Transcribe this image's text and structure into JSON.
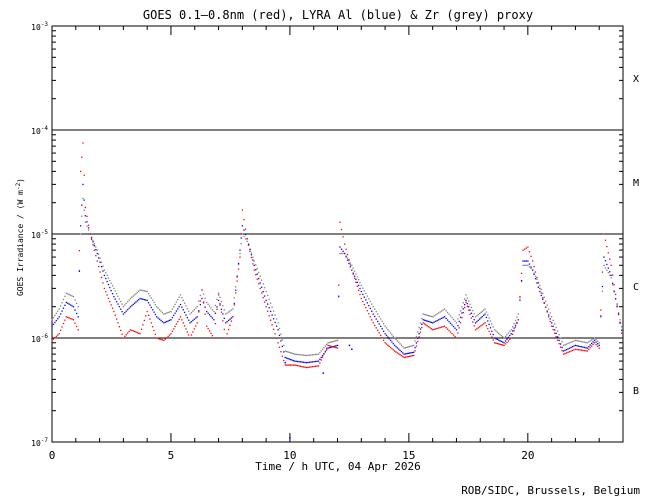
{
  "chart_data": {
    "type": "scatter",
    "title": "GOES 0.1–0.8nm (red), LYRA Al (blue) & Zr (grey) proxy",
    "xlabel": "Time / h UTC, 04 Apr 2026",
    "ylabel_prefix": "GOES Irradiance / (W m",
    "ylabel_exp": "-2",
    "ylabel_suffix": ")",
    "footer": "ROB/SIDC, Brussels, Belgium",
    "xlim": [
      0,
      24
    ],
    "ylim_log10": [
      -7,
      -3
    ],
    "y_scale": "log",
    "x_ticks": [
      0,
      5,
      10,
      15,
      20
    ],
    "x_tick_labels": [
      "0",
      "5",
      "10",
      "15",
      "20"
    ],
    "y_ticks_log10": [
      -7,
      -6,
      -5,
      -4,
      -3
    ],
    "y_tick_labels": [
      {
        "base": "10",
        "exp": "-7"
      },
      {
        "base": "10",
        "exp": "-6"
      },
      {
        "base": "10",
        "exp": "-5"
      },
      {
        "base": "10",
        "exp": "-4"
      },
      {
        "base": "10",
        "exp": "-3"
      }
    ],
    "flare_class_lines": [
      -6,
      -5,
      -4
    ],
    "flare_classes": [
      {
        "label": "X",
        "log10": -3.5
      },
      {
        "label": "M",
        "log10": -4.5
      },
      {
        "label": "C",
        "log10": -5.5
      },
      {
        "label": "B",
        "log10": -6.5
      }
    ],
    "series": [
      {
        "name": "GOES",
        "color": "#ff0000",
        "x": [
          0,
          0.3,
          0.6,
          0.9,
          1.1,
          1.2,
          1.3,
          1.4,
          1.6,
          1.9,
          2.2,
          2.6,
          3.0,
          3.3,
          3.7,
          4.0,
          4.4,
          4.7,
          5.0,
          5.4,
          5.8,
          6.1,
          6.3,
          6.5,
          6.8,
          7.0,
          7.3,
          7.6,
          7.9,
          8.0,
          8.2,
          8.5,
          9.0,
          9.5,
          9.8,
          10.2,
          10.7,
          11.2,
          11.6,
          12.0,
          12.1,
          12.3,
          12.6,
          13.0,
          13.5,
          14.0,
          14.4,
          14.8,
          15.2,
          15.6,
          16.0,
          16.5,
          17.0,
          17.4,
          17.8,
          18.2,
          18.6,
          19.0,
          19.3,
          19.6,
          19.8,
          20.0,
          20.2,
          20.5,
          21.0,
          21.5,
          22.0,
          22.5,
          22.8,
          23.0,
          23.2,
          23.5,
          24.0
        ],
        "y": [
          9.5e-07,
          1.1e-06,
          1.6e-06,
          1.5e-06,
          1.2e-06,
          4e-05,
          7.5e-05,
          1.8e-05,
          1e-05,
          5.5e-06,
          3e-06,
          1.8e-06,
          1e-06,
          1.2e-06,
          1.1e-06,
          1.8e-06,
          1e-06,
          9.5e-07,
          1.1e-06,
          1.6e-06,
          1e-06,
          1.4e-06,
          2.9e-06,
          1.3e-06,
          1e-06,
          2.6e-06,
          1e-06,
          1.6e-06,
          6e-06,
          1.7e-05,
          9e-06,
          4.5e-06,
          2e-06,
          9e-07,
          5.5e-07,
          5.5e-07,
          5.2e-07,
          5.4e-07,
          8.5e-07,
          8e-07,
          1.3e-05,
          8e-06,
          4.5e-06,
          2.4e-06,
          1.4e-06,
          9e-07,
          7.5e-07,
          6.5e-07,
          6.8e-07,
          1.4e-06,
          1.2e-06,
          1.3e-06,
          1e-06,
          2.2e-06,
          1.2e-06,
          1.4e-06,
          9e-07,
          8.5e-07,
          1e-06,
          1.5e-06,
          7e-06,
          7.5e-06,
          5.5e-06,
          3e-06,
          1.3e-06,
          7e-07,
          7.8e-07,
          7.5e-07,
          9e-07,
          8e-07,
          1e-05,
          5e-06,
          9e-07
        ]
      },
      {
        "name": "LYRA Al",
        "color": "#0000ff",
        "x": [
          0,
          0.3,
          0.6,
          0.9,
          1.1,
          1.2,
          1.3,
          1.4,
          1.6,
          1.9,
          2.2,
          2.6,
          3.0,
          3.3,
          3.7,
          4.0,
          4.4,
          4.7,
          5.0,
          5.4,
          5.8,
          6.1,
          6.3,
          6.5,
          6.8,
          7.0,
          7.3,
          7.6,
          7.9,
          8.0,
          8.2,
          8.5,
          9.0,
          9.5,
          9.8,
          10.2,
          10.7,
          11.2,
          11.6,
          12.0,
          12.1,
          12.3,
          12.6,
          13.0,
          13.5,
          14.0,
          14.4,
          14.8,
          15.2,
          15.6,
          16.0,
          16.5,
          17.0,
          17.4,
          17.8,
          18.2,
          18.6,
          19.0,
          19.3,
          19.6,
          19.8,
          20.0,
          20.2,
          20.5,
          21.0,
          21.5,
          22.0,
          22.5,
          22.8,
          23.0,
          23.2,
          23.5,
          24.0
        ],
        "y": [
          1.3e-06,
          1.6e-06,
          2.2e-06,
          2e-06,
          1.6e-06,
          1.2e-05,
          3e-05,
          1.5e-05,
          1e-05,
          6.5e-06,
          4e-06,
          2.5e-06,
          1.7e-06,
          2e-06,
          2.4e-06,
          2.3e-06,
          1.6e-06,
          1.4e-06,
          1.5e-06,
          2.1e-06,
          1.4e-06,
          1.6e-06,
          2.4e-06,
          1.8e-06,
          1.5e-06,
          2.3e-06,
          1.4e-06,
          1.6e-06,
          7e-06,
          1.2e-05,
          9e-06,
          5e-06,
          2.3e-06,
          1.2e-06,
          6.5e-07,
          6e-07,
          5.8e-07,
          6e-07,
          8e-07,
          8.5e-07,
          7.5e-06,
          6.5e-06,
          4.5e-06,
          2.8e-06,
          1.7e-06,
          1.1e-06,
          8.5e-07,
          7e-07,
          7.3e-07,
          1.5e-06,
          1.4e-06,
          1.6e-06,
          1.2e-06,
          2.3e-06,
          1.4e-06,
          1.7e-06,
          1e-06,
          9e-07,
          1.1e-06,
          1.5e-06,
          5.5e-06,
          5.5e-06,
          4.5e-06,
          2.8e-06,
          1.4e-06,
          7.5e-07,
          8.5e-07,
          8e-07,
          9.5e-07,
          8.5e-07,
          6e-06,
          4e-06,
          1e-06
        ]
      },
      {
        "name": "LYRA Zr",
        "color": "#808080",
        "x": [
          0,
          0.3,
          0.6,
          0.9,
          1.1,
          1.2,
          1.3,
          1.4,
          1.6,
          1.9,
          2.2,
          2.6,
          3.0,
          3.3,
          3.7,
          4.0,
          4.4,
          4.7,
          5.0,
          5.4,
          5.8,
          6.1,
          6.3,
          6.5,
          6.8,
          7.0,
          7.3,
          7.6,
          7.9,
          8.0,
          8.2,
          8.5,
          9.0,
          9.5,
          9.8,
          10.2,
          10.7,
          11.2,
          11.6,
          12.0,
          12.1,
          12.3,
          12.6,
          13.0,
          13.5,
          14.0,
          14.4,
          14.8,
          15.2,
          15.6,
          16.0,
          16.5,
          17.0,
          17.4,
          17.8,
          18.2,
          18.6,
          19.0,
          19.3,
          19.6,
          19.8,
          20.0,
          20.2,
          20.5,
          21.0,
          21.5,
          22.0,
          22.5,
          22.8,
          23.0,
          23.2,
          23.5,
          24.0
        ],
        "y": [
          1.5e-06,
          1.9e-06,
          2.7e-06,
          2.5e-06,
          2e-06,
          1e-05,
          2.2e-05,
          1.3e-05,
          1e-05,
          7e-06,
          4.5e-06,
          3e-06,
          2e-06,
          2.4e-06,
          2.9e-06,
          2.8e-06,
          2e-06,
          1.7e-06,
          1.8e-06,
          2.6e-06,
          1.7e-06,
          2e-06,
          2.9e-06,
          2.2e-06,
          1.8e-06,
          2.7e-06,
          1.7e-06,
          1.9e-06,
          6.5e-06,
          1e-05,
          8.5e-06,
          5.5e-06,
          2.8e-06,
          1.4e-06,
          7.5e-07,
          7e-07,
          6.8e-07,
          7e-07,
          9e-07,
          9.5e-07,
          6.5e-06,
          6.5e-06,
          5e-06,
          3.2e-06,
          2e-06,
          1.3e-06,
          1e-06,
          8e-07,
          8.5e-07,
          1.7e-06,
          1.6e-06,
          1.9e-06,
          1.4e-06,
          2.6e-06,
          1.6e-06,
          1.9e-06,
          1.2e-06,
          1e-06,
          1.2e-06,
          1.7e-06,
          5e-06,
          5e-06,
          4.5e-06,
          3.2e-06,
          1.6e-06,
          8.5e-07,
          9.5e-07,
          9e-07,
          1e-06,
          9e-07,
          5e-06,
          3.8e-06,
          1.1e-06
        ]
      }
    ],
    "outliers": [
      {
        "x": 10.0,
        "y": 1.1e-07,
        "color": "#0000ff"
      },
      {
        "x": 12.5,
        "y": 8.5e-07,
        "color": "#0000ff"
      },
      {
        "x": 12.6,
        "y": 7.8e-07,
        "color": "#0000ff"
      },
      {
        "x": 9.8,
        "y": 5.8e-07,
        "color": "#0000ff"
      },
      {
        "x": 11.4,
        "y": 4.6e-07,
        "color": "#0000ff"
      }
    ],
    "grid": false,
    "legend": "none"
  }
}
